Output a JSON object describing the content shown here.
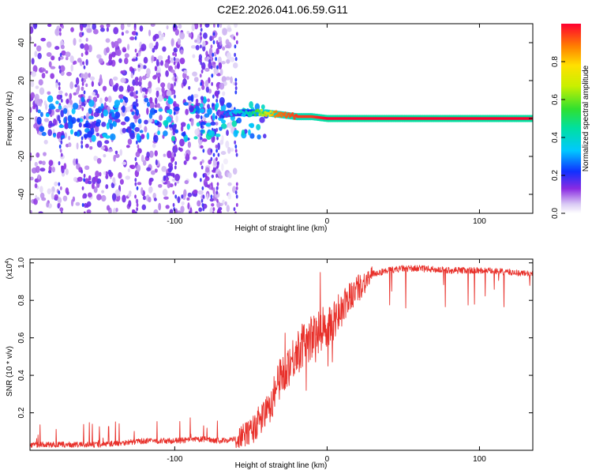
{
  "title": "C2E2.2026.041.06.59.G11",
  "chart_data": [
    {
      "type": "heatmap",
      "xlabel": "Height of straight line (km)",
      "ylabel": "Frequency (Hz)",
      "xlim": [
        -195,
        135
      ],
      "ylim": [
        -50,
        50
      ],
      "xticks": [
        -100,
        0,
        100
      ],
      "xtick_labels": [
        "-100",
        "0",
        "100"
      ],
      "yticks": [
        -40,
        -20,
        0,
        20,
        40
      ],
      "ytick_labels": [
        "-40",
        "-20",
        "0",
        "20",
        "40"
      ],
      "colorbar": {
        "label": "Normalized spectral amplitude",
        "range": [
          0,
          1
        ],
        "ticks": [
          0.0,
          0.2,
          0.4,
          0.6,
          0.8
        ],
        "tick_labels": [
          "0.0",
          "0.2",
          "0.4",
          "0.6",
          "0.8"
        ]
      },
      "ridge": [
        {
          "x": -70,
          "freq": 2,
          "amp": 0.25
        },
        {
          "x": -60,
          "freq": 3,
          "amp": 0.4
        },
        {
          "x": -50,
          "freq": 3,
          "amp": 0.5
        },
        {
          "x": -40,
          "freq": 3,
          "amp": 0.85
        },
        {
          "x": -30,
          "freq": 2,
          "amp": 0.9
        },
        {
          "x": -20,
          "freq": 1,
          "amp": 0.95
        },
        {
          "x": -10,
          "freq": 1,
          "amp": 0.95
        },
        {
          "x": 0,
          "freq": 0,
          "amp": 1.0
        },
        {
          "x": 50,
          "freq": 0,
          "amp": 1.0
        },
        {
          "x": 100,
          "freq": 0,
          "amp": 1.0
        },
        {
          "x": 135,
          "freq": 0,
          "amp": 1.0
        }
      ],
      "description": "Noisy broadband scatter below about -70 km; a single narrow high-amplitude ridge near 0 Hz above about -40 km"
    },
    {
      "type": "line",
      "xlabel": "Height of straight line (km)",
      "ylabel": "SNR (10 * v/v)",
      "ylabel_scale": "(x10",
      "ylabel_scale_exp": "4",
      "ylabel_scale_close": ")",
      "xlim": [
        -195,
        135
      ],
      "ylim": [
        0,
        1.02
      ],
      "xticks": [
        -100,
        0,
        100
      ],
      "xtick_labels": [
        "-100",
        "0",
        "100"
      ],
      "yticks": [
        0.2,
        0.4,
        0.6,
        0.8,
        1.0
      ],
      "ytick_labels": [
        "0.2",
        "0.4",
        "0.6",
        "0.8",
        "1.0"
      ],
      "color": "#e8302a",
      "envelope": {
        "x": [
          -195,
          -150,
          -120,
          -100,
          -80,
          -70,
          -60,
          -50,
          -40,
          -35,
          -30,
          -25,
          -20,
          -15,
          -10,
          -5,
          0,
          5,
          10,
          15,
          20,
          25,
          30,
          35,
          40,
          50,
          60,
          80,
          100,
          120,
          135
        ],
        "y": [
          0.03,
          0.03,
          0.05,
          0.05,
          0.06,
          0.05,
          0.06,
          0.1,
          0.2,
          0.3,
          0.4,
          0.46,
          0.52,
          0.57,
          0.6,
          0.63,
          0.66,
          0.7,
          0.75,
          0.82,
          0.86,
          0.9,
          0.94,
          0.95,
          0.96,
          0.97,
          0.97,
          0.96,
          0.96,
          0.95,
          0.94
        ]
      }
    }
  ]
}
